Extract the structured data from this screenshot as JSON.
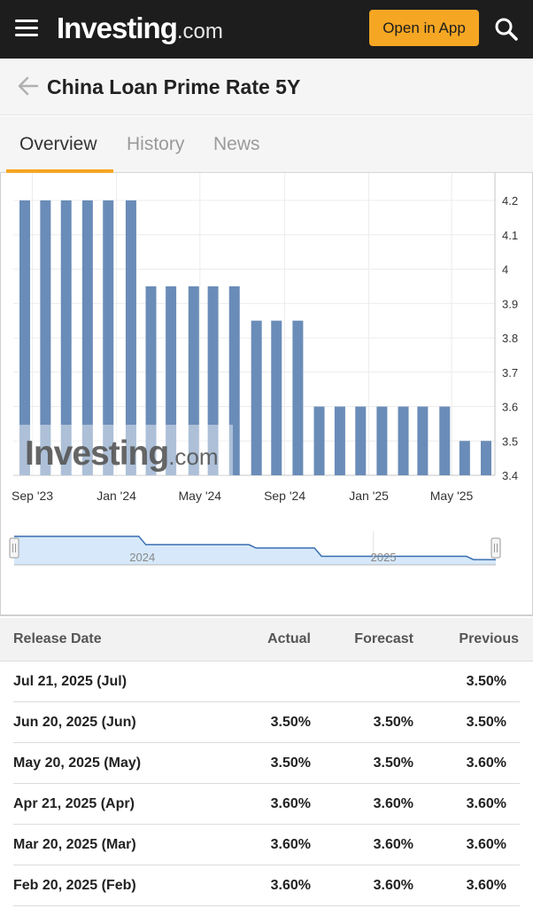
{
  "header": {
    "logo_main": "Investing",
    "logo_suffix": ".com",
    "open_app_label": "Open in App",
    "menu_icon": "hamburger-icon",
    "search_icon": "search-icon"
  },
  "page": {
    "title": "China Loan Prime Rate 5Y",
    "back_icon": "arrow-left-icon"
  },
  "tabs": [
    {
      "label": "Overview",
      "active": true
    },
    {
      "label": "History",
      "active": false
    },
    {
      "label": "News",
      "active": false
    }
  ],
  "chart_data": {
    "type": "bar",
    "x": [
      "2023-08-21",
      "2023-09-20",
      "2023-10-20",
      "2023-11-20",
      "2023-12-20",
      "2024-01-22",
      "2024-02-20",
      "2024-03-20",
      "2024-04-22",
      "2024-05-20",
      "2024-06-20",
      "2024-07-22",
      "2024-08-20",
      "2024-09-20",
      "2024-10-21",
      "2024-11-20",
      "2024-12-20",
      "2025-01-20",
      "2025-02-20",
      "2025-03-20",
      "2025-04-21",
      "2025-05-20",
      "2025-06-20"
    ],
    "values": [
      4.2,
      4.2,
      4.2,
      4.2,
      4.2,
      4.2,
      3.95,
      3.95,
      3.95,
      3.95,
      3.95,
      3.85,
      3.85,
      3.85,
      3.6,
      3.6,
      3.6,
      3.6,
      3.6,
      3.6,
      3.6,
      3.5,
      3.5
    ],
    "x_tick_labels": [
      "Sep '23",
      "Jan '24",
      "May '24",
      "Sep '24",
      "Jan '25",
      "May '25"
    ],
    "y_ticks": [
      4.2,
      4.1,
      4,
      3.9,
      3.8,
      3.7,
      3.6,
      3.5,
      3.4
    ],
    "ylim": [
      3.4,
      4.28
    ],
    "y_axis_side": "right",
    "grid": true,
    "bar_color": "#6a8cb8",
    "watermark": "Investing.com",
    "navigator": {
      "labels": [
        "2024",
        "2025"
      ],
      "line_color": "#3a6fb0",
      "fill_color": "#d6e8fa"
    }
  },
  "table": {
    "columns": [
      "Release Date",
      "Actual",
      "Forecast",
      "Previous"
    ],
    "rows": [
      {
        "date": "Jul 21, 2025 (Jul)",
        "actual": "",
        "forecast": "",
        "previous": "3.50%"
      },
      {
        "date": "Jun 20, 2025 (Jun)",
        "actual": "3.50%",
        "forecast": "3.50%",
        "previous": "3.50%"
      },
      {
        "date": "May 20, 2025 (May)",
        "actual": "3.50%",
        "forecast": "3.50%",
        "previous": "3.60%"
      },
      {
        "date": "Apr 21, 2025 (Apr)",
        "actual": "3.60%",
        "forecast": "3.60%",
        "previous": "3.60%"
      },
      {
        "date": "Mar 20, 2025 (Mar)",
        "actual": "3.60%",
        "forecast": "3.60%",
        "previous": "3.60%"
      },
      {
        "date": "Feb 20, 2025 (Feb)",
        "actual": "3.60%",
        "forecast": "3.60%",
        "previous": "3.60%"
      }
    ]
  },
  "colors": {
    "accent": "#f5a623",
    "topbar": "#1d1d1d",
    "bar": "#6a8cb8"
  }
}
